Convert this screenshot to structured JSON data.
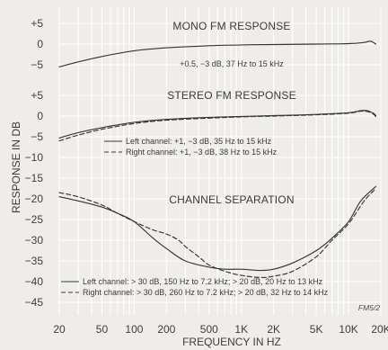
{
  "chart_data": {
    "type": "line",
    "xlabel": "FREQUENCY IN HZ",
    "ylabel": "RESPONSE IN DB",
    "x_scale": "log",
    "x_ticks": [
      "20",
      "50",
      "100",
      "200",
      "500",
      "1K",
      "2K",
      "5K",
      "10K",
      "20K"
    ],
    "x_tick_values": [
      20,
      50,
      100,
      200,
      500,
      1000,
      2000,
      5000,
      10000,
      20000
    ],
    "panels": [
      {
        "key": "mono",
        "title": "MONO FM RESPONSE",
        "y_ticks": [
          "+5",
          "0",
          "−5"
        ],
        "y_tick_values": [
          5,
          0,
          -5
        ],
        "annotation": "+0.5, −3 dB, 37 Hz to 15 kHz",
        "series": [
          {
            "style": "solid",
            "x": [
              20,
              30,
              50,
              100,
              200,
              500,
              1000,
              2000,
              5000,
              10000,
              14000,
              16000,
              18000
            ],
            "y": [
              -5.5,
              -4.3,
              -3.0,
              -1.6,
              -0.9,
              -0.4,
              -0.2,
              -0.1,
              0,
              0.1,
              0.4,
              0.7,
              0.0
            ]
          }
        ]
      },
      {
        "key": "stereo",
        "title": "STEREO FM RESPONSE",
        "y_ticks": [
          "+5",
          "0",
          "−5",
          "−10",
          "−15"
        ],
        "y_tick_values": [
          5,
          0,
          -5,
          -10,
          -15
        ],
        "legend": [
          {
            "style": "solid",
            "label": "Left channel: +1, −3 dB, 35 Hz to 15 kHz"
          },
          {
            "style": "dashed",
            "label": "Right channel: +1, −3 dB, 38 Hz to 15 kHz"
          }
        ],
        "series": [
          {
            "style": "solid",
            "x": [
              20,
              30,
              50,
              100,
              200,
              500,
              1000,
              2000,
              5000,
              10000,
              13000,
              15000,
              17000,
              18000
            ],
            "y": [
              -5.3,
              -4.0,
              -2.8,
              -1.5,
              -0.8,
              -0.3,
              -0.1,
              0.1,
              0.4,
              0.8,
              1.3,
              1.3,
              0.7,
              0.1
            ]
          },
          {
            "style": "dashed",
            "x": [
              20,
              30,
              50,
              100,
              200,
              500,
              1000,
              2000,
              5000,
              10000,
              13000,
              15000,
              17000,
              18000
            ],
            "y": [
              -6.0,
              -4.6,
              -3.2,
              -1.8,
              -1.0,
              -0.5,
              -0.2,
              0.0,
              0.3,
              0.7,
              1.2,
              1.1,
              0.5,
              -0.1
            ]
          }
        ]
      },
      {
        "key": "separation",
        "title": "CHANNEL SEPARATION",
        "y_ticks": [
          "−20",
          "−25",
          "−30",
          "−35",
          "−40",
          "−45"
        ],
        "y_tick_values": [
          -20,
          -25,
          -30,
          -35,
          -40,
          -45
        ],
        "legend": [
          {
            "style": "solid",
            "label": "Left channel: > 30 dB, 150 Hz to 7.2 kHz; > 20 dB, 20 Hz to 13 kHz"
          },
          {
            "style": "dashed",
            "label": "Right channel: > 30 dB, 260 Hz to 7.2 kHz; > 20 dB, 32 Hz to 14 kHz"
          }
        ],
        "series": [
          {
            "style": "solid",
            "x": [
              20,
              30,
              50,
              70,
              100,
              150,
              200,
              300,
              500,
              700,
              1000,
              1500,
              2000,
              3000,
              5000,
              7000,
              10000,
              13000,
              18000
            ],
            "y": [
              -19.5,
              -20.5,
              -22.0,
              -23.5,
              -25.5,
              -29.5,
              -32.0,
              -35.0,
              -36.5,
              -37.0,
              -37.0,
              -37.3,
              -37.0,
              -35.5,
              -32.5,
              -29.5,
              -25.5,
              -20.5,
              -17.0
            ]
          },
          {
            "style": "dashed",
            "x": [
              20,
              30,
              50,
              70,
              100,
              150,
              200,
              260,
              300,
              400,
              500,
              700,
              1000,
              1500,
              2000,
              3000,
              5000,
              7000,
              10000,
              14000,
              18000
            ],
            "y": [
              -18.5,
              -19.5,
              -21.5,
              -23.5,
              -25.5,
              -27.5,
              -28.5,
              -30.0,
              -31.5,
              -34.0,
              -36.0,
              -37.5,
              -38.5,
              -39.0,
              -38.7,
              -37.5,
              -34.0,
              -30.0,
              -26.0,
              -20.5,
              -17.5
            ]
          }
        ]
      }
    ],
    "figure_code": "FM5/2"
  }
}
